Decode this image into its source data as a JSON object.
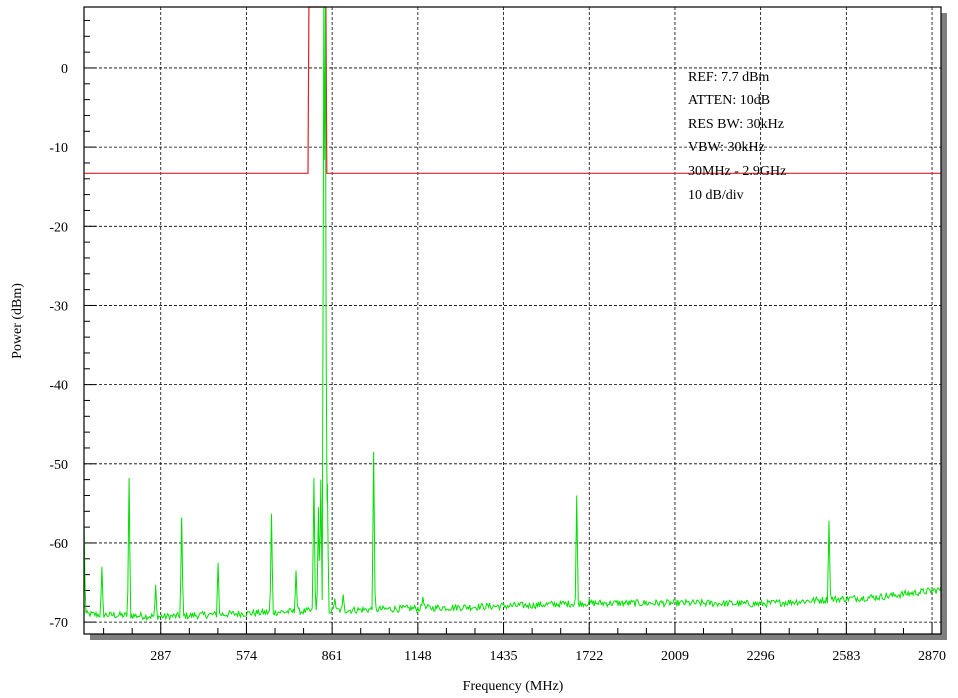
{
  "chart_data": {
    "type": "line",
    "title": "",
    "xlabel": "Frequency (MHz)",
    "ylabel": "Power (dBm)",
    "xlim": [
      30,
      2900
    ],
    "ylim": [
      -71.5,
      7.7
    ],
    "x_ticks": [
      287,
      574,
      861,
      1148,
      1435,
      1722,
      2009,
      2296,
      2583,
      2870
    ],
    "x_tick_labels": [
      "287",
      "574",
      "861",
      "1148",
      "1435",
      "1722",
      "2009",
      "2296",
      "2583",
      "2870"
    ],
    "y_ticks": [
      0,
      -10,
      -20,
      -30,
      -40,
      -50,
      -60,
      -70
    ],
    "y_tick_labels": [
      "0",
      "-10",
      "-20",
      "-30",
      "-40",
      "-50",
      "-60",
      "-70"
    ],
    "grid": true,
    "legend": "none",
    "annotations": [
      "REF: 7.7 dBm",
      "ATTEN: 10dB",
      "RES BW: 30kHz",
      "VBW: 30kHz",
      "30MHz - 2.9GHz",
      "10 dB/div"
    ],
    "colors": {
      "spectrum": "#00e000",
      "mask": "#e0202a",
      "background": "#ffffff",
      "shadow": "#7f7f7f"
    },
    "series": [
      {
        "type": "mask",
        "x": [
          30,
          780,
          783,
          840,
          843,
          2900
        ],
        "y": [
          -13.3,
          -13.3,
          7.7,
          7.7,
          -13.3,
          -13.3
        ]
      },
      {
        "type": "spectrum",
        "baseline": [
          [
            30,
            -69.0
          ],
          [
            300,
            -69.3
          ],
          [
            500,
            -69.0
          ],
          [
            700,
            -68.7
          ],
          [
            900,
            -68.5
          ],
          [
            1100,
            -68.3
          ],
          [
            1300,
            -68.1
          ],
          [
            1500,
            -67.9
          ],
          [
            1700,
            -67.6
          ],
          [
            1900,
            -67.6
          ],
          [
            2100,
            -67.6
          ],
          [
            2300,
            -67.7
          ],
          [
            2500,
            -67.2
          ],
          [
            2700,
            -66.8
          ],
          [
            2900,
            -65.9
          ]
        ],
        "peaks": [
          [
            30,
            -57.5
          ],
          [
            90,
            -63.0
          ],
          [
            181,
            -51.8
          ],
          [
            270,
            -65.3
          ],
          [
            357,
            -56.8
          ],
          [
            479,
            -62.5
          ],
          [
            658,
            -56.3
          ],
          [
            740,
            -63.5
          ],
          [
            800,
            -51.8
          ],
          [
            815,
            -55.5
          ],
          [
            823,
            -52.0
          ],
          [
            833,
            7.7
          ],
          [
            838,
            7.7
          ],
          [
            845,
            -52.5
          ],
          [
            870,
            -67.0
          ],
          [
            898,
            -66.5
          ],
          [
            1000,
            -48.5
          ],
          [
            1165,
            -66.8
          ],
          [
            1680,
            -54.0
          ],
          [
            2525,
            -57.2
          ]
        ]
      }
    ]
  }
}
